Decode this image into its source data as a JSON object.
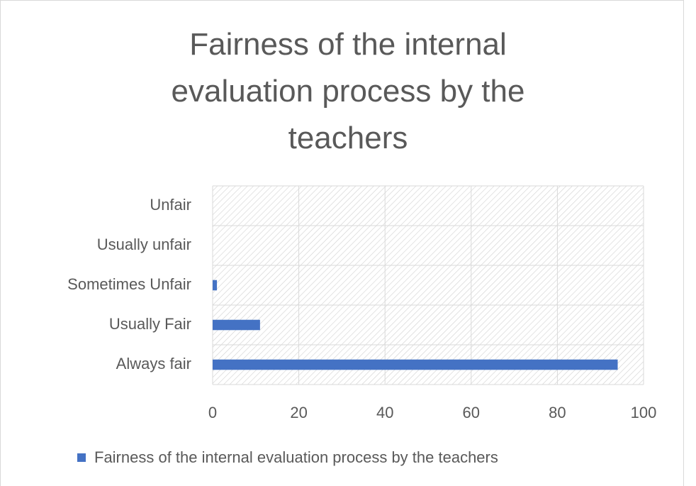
{
  "chart_data": {
    "type": "bar",
    "orientation": "horizontal",
    "title": "Fairness of the internal evaluation process by the teachers",
    "categories": [
      "Always fair",
      "Usually Fair",
      "Sometimes Unfair",
      "Usually unfair",
      "Unfair"
    ],
    "series": [
      {
        "name": "Fairness of the internal evaluation process by the teachers",
        "color": "#4472c4",
        "values": [
          94,
          11,
          1,
          0,
          0
        ]
      }
    ],
    "xlim": [
      0,
      100
    ],
    "xticks": [
      0,
      20,
      40,
      60,
      80,
      100
    ],
    "grid": true,
    "legend": "bottom"
  }
}
